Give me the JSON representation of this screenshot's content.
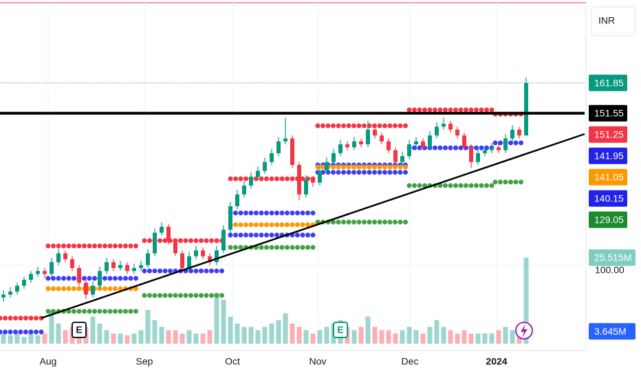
{
  "chart_data": {
    "type": "candlestick",
    "currency": "INR",
    "xlim": [
      -0.5,
      84.5
    ],
    "ylim": [
      71,
      190
    ],
    "yticks": [
      {
        "value": 100,
        "label": "100.00"
      }
    ],
    "xticks": [
      {
        "value": 6.5,
        "label": "Aug"
      },
      {
        "value": 20.5,
        "label": "Sep"
      },
      {
        "value": 33.3,
        "label": "Oct"
      },
      {
        "value": 45.7,
        "label": "Nov"
      },
      {
        "value": 59.1,
        "label": "Dec"
      },
      {
        "value": 71.7,
        "label": "2024"
      }
    ],
    "grid": true,
    "up_color": "#089981",
    "down_color": "#f23645",
    "ohlc": [
      [
        89,
        91.5,
        87.5,
        90
      ],
      [
        90,
        92.5,
        89,
        91
      ],
      [
        91,
        94,
        90,
        93
      ],
      [
        93,
        96,
        92,
        95
      ],
      [
        95,
        98,
        94,
        97
      ],
      [
        97,
        99.5,
        96,
        98
      ],
      [
        98,
        99,
        95.5,
        97
      ],
      [
        97,
        102.5,
        96,
        101
      ],
      [
        101,
        105.5,
        100,
        104
      ],
      [
        104,
        105,
        101,
        102
      ],
      [
        102,
        103,
        98,
        99
      ],
      [
        99,
        100,
        93,
        94
      ],
      [
        94,
        95,
        88.5,
        90
      ],
      [
        90,
        94.5,
        89,
        93
      ],
      [
        93,
        99.5,
        92,
        98
      ],
      [
        98,
        102.5,
        97,
        101
      ],
      [
        101,
        102,
        98,
        99
      ],
      [
        99,
        101.5,
        98,
        100
      ],
      [
        100,
        101,
        97,
        98
      ],
      [
        98,
        100.5,
        97,
        99
      ],
      [
        99,
        101.5,
        98,
        100
      ],
      [
        100,
        105.5,
        99,
        104
      ],
      [
        104,
        112.5,
        103,
        111
      ],
      [
        111,
        114.5,
        110,
        113
      ],
      [
        113,
        114,
        107,
        108
      ],
      [
        108,
        109,
        103,
        104
      ],
      [
        104,
        105,
        98,
        99
      ],
      [
        99,
        104.5,
        98,
        103
      ],
      [
        103,
        106.5,
        102,
        105
      ],
      [
        105,
        106,
        102,
        103
      ],
      [
        103,
        104,
        100,
        101
      ],
      [
        101,
        106.5,
        100,
        105
      ],
      [
        105,
        113.5,
        104,
        112
      ],
      [
        112,
        121.5,
        111,
        120
      ],
      [
        120,
        125.5,
        119,
        124
      ],
      [
        124,
        128.5,
        123,
        127
      ],
      [
        127,
        131.5,
        126,
        130
      ],
      [
        130,
        133.5,
        129,
        132
      ],
      [
        132,
        136.5,
        131,
        135
      ],
      [
        135,
        139.5,
        134,
        138
      ],
      [
        138,
        143.5,
        137,
        142
      ],
      [
        142,
        150,
        141,
        143
      ],
      [
        143,
        144,
        133,
        134
      ],
      [
        134,
        135,
        122,
        124
      ],
      [
        124,
        130.5,
        123,
        129
      ],
      [
        129,
        130,
        126.5,
        128
      ],
      [
        128,
        133.5,
        127,
        132
      ],
      [
        132,
        136.5,
        131,
        135
      ],
      [
        135,
        139.5,
        134,
        138
      ],
      [
        138,
        142.5,
        137,
        141
      ],
      [
        141,
        142,
        139,
        140
      ],
      [
        140,
        143.5,
        139,
        142
      ],
      [
        142,
        143,
        140,
        141
      ],
      [
        141,
        149,
        140,
        146
      ],
      [
        146,
        147,
        143,
        144
      ],
      [
        144,
        145,
        141,
        142
      ],
      [
        142,
        143,
        138,
        139
      ],
      [
        139,
        140,
        134,
        135
      ],
      [
        135,
        138.5,
        134,
        137
      ],
      [
        137,
        142.5,
        136,
        141
      ],
      [
        141,
        143.5,
        140,
        142
      ],
      [
        142,
        143,
        139,
        140
      ],
      [
        140,
        145.5,
        139,
        144
      ],
      [
        144,
        148.5,
        143,
        147
      ],
      [
        147,
        150,
        146,
        148
      ],
      [
        148,
        149,
        145,
        146
      ],
      [
        146,
        147,
        143,
        144
      ],
      [
        144,
        145,
        139,
        140
      ],
      [
        140,
        141,
        133,
        135
      ],
      [
        135,
        139.5,
        134,
        138
      ],
      [
        138,
        140.5,
        137,
        139
      ],
      [
        139,
        141.5,
        138,
        140
      ],
      [
        140,
        141,
        138,
        139
      ],
      [
        139,
        144.5,
        138,
        143
      ],
      [
        143,
        147.5,
        142,
        146
      ],
      [
        146,
        147,
        143,
        144
      ],
      [
        144,
        163.7,
        144,
        161.85
      ]
    ],
    "volume_ylim": [
      0,
      104
    ],
    "volume": [
      3,
      2.5,
      3,
      2,
      3,
      2.5,
      3,
      10,
      6,
      4,
      5,
      4,
      5,
      8,
      6,
      4,
      3,
      3,
      2.5,
      3,
      4,
      10,
      7,
      5,
      4,
      4,
      3,
      4,
      3,
      3,
      4,
      15,
      13,
      8,
      6,
      5,
      5,
      4,
      5,
      6,
      7,
      9,
      6,
      5,
      4,
      3,
      4,
      5,
      6,
      7,
      5,
      4,
      5,
      8,
      5,
      4,
      4,
      3,
      4,
      5,
      4,
      3,
      5,
      7,
      5,
      4,
      3,
      4,
      3,
      3,
      3,
      3,
      4,
      5,
      4,
      5,
      25.515
    ],
    "levels": [
      {
        "color": "#f23645",
        "value": 82,
        "x0": -0.5,
        "x1": 6
      },
      {
        "color": "#f23645",
        "value": 106.5,
        "x0": 6.5,
        "x1": 20
      },
      {
        "color": "#f23645",
        "value": 108.3,
        "x0": 20.5,
        "x1": 32.5
      },
      {
        "color": "#f23645",
        "value": 129.3,
        "x0": 33,
        "x1": 45.5
      },
      {
        "color": "#f23645",
        "value": 147.3,
        "x0": 45.7,
        "x1": 58.5
      },
      {
        "color": "#f23645",
        "value": 152.7,
        "x0": 59,
        "x1": 71.5
      },
      {
        "color": "#f23645",
        "value": 151.25,
        "x0": 71.5,
        "x1": 75.5
      },
      {
        "color": "#3d3df5",
        "value": 77.3,
        "x0": -0.5,
        "x1": 6
      },
      {
        "color": "#3d3df5",
        "value": 95.5,
        "x0": 6.5,
        "x1": 20
      },
      {
        "color": "#3d3df5",
        "value": 98,
        "x0": 20.5,
        "x1": 32.5
      },
      {
        "color": "#3d3df5",
        "value": 117.7,
        "x0": 33,
        "x1": 45.5
      },
      {
        "color": "#3d3df5",
        "value": 110.2,
        "x0": 33,
        "x1": 45.5
      },
      {
        "color": "#3d3df5",
        "value": 134,
        "x0": 45.7,
        "x1": 58.5
      },
      {
        "color": "#3d3df5",
        "value": 131.5,
        "x0": 45.7,
        "x1": 58.5
      },
      {
        "color": "#3d3df5",
        "value": 139.8,
        "x0": 59,
        "x1": 71.5
      },
      {
        "color": "#3d3df5",
        "value": 141.5,
        "x0": 71.5,
        "x1": 75.5
      },
      {
        "color": "#ff9800",
        "value": 92,
        "x0": 6.5,
        "x1": 20
      },
      {
        "color": "#ff9800",
        "value": 113.7,
        "x0": 33,
        "x1": 45.5
      },
      {
        "color": "#ff9800",
        "value": 133.3,
        "x0": 45.7,
        "x1": 58.5
      },
      {
        "color": "#43a047",
        "value": 84.3,
        "x0": 6.5,
        "x1": 20
      },
      {
        "color": "#43a047",
        "value": 89.7,
        "x0": 20.5,
        "x1": 32.5
      },
      {
        "color": "#43a047",
        "value": 106,
        "x0": 33,
        "x1": 45.5
      },
      {
        "color": "#43a047",
        "value": 114.6,
        "x0": 45.7,
        "x1": 58.5
      },
      {
        "color": "#43a047",
        "value": 127,
        "x0": 59,
        "x1": 71.5
      },
      {
        "color": "#43a047",
        "value": 128.2,
        "x0": 71.5,
        "x1": 75.5
      }
    ],
    "resistance": 151.55,
    "trendline": {
      "from": [
        5.5,
        82
      ],
      "to": [
        84.5,
        144.5
      ]
    },
    "price_badges": [
      {
        "value": 161.85,
        "color": "#089981"
      },
      {
        "value": 151.55,
        "color": "#000000"
      },
      {
        "value": 151.25,
        "color": "#f23645"
      },
      {
        "value": 141.95,
        "color": "#2323e6"
      },
      {
        "value": 141.05,
        "color": "#ff9800"
      },
      {
        "value": 140.15,
        "color": "#2323e6"
      },
      {
        "value": 129.05,
        "color": "#1e8a2e"
      }
    ],
    "volume_badges": [
      {
        "value": 25.515,
        "label": "25.515M",
        "color": "#7fcdc0"
      },
      {
        "value": 3.645,
        "label": "3.645M",
        "color": "#2962ff"
      }
    ],
    "events": [
      {
        "index": 11,
        "label": "E"
      },
      {
        "index": 49,
        "label": "E"
      }
    ]
  }
}
